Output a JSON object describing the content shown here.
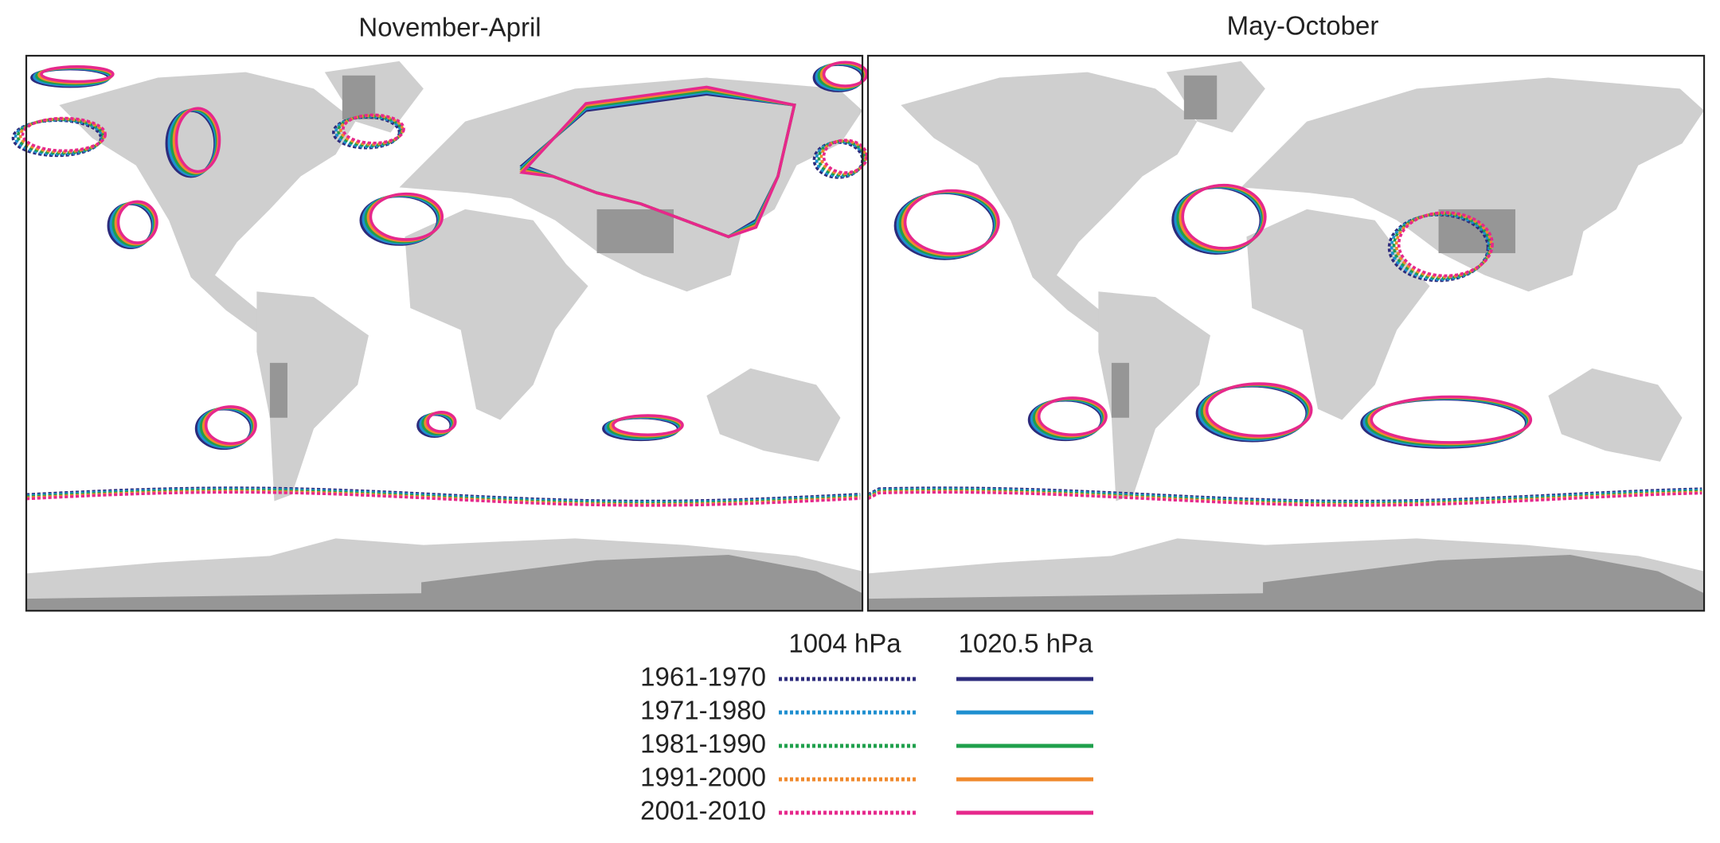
{
  "panels": [
    {
      "title": "November-April"
    },
    {
      "title": "May-October"
    }
  ],
  "legend": {
    "headers": [
      "1004 hPa",
      "1020.5 hPa"
    ],
    "entries": [
      {
        "label": "1961-1970",
        "color": "#2d2b7c"
      },
      {
        "label": "1971-1980",
        "color": "#1f8fd0"
      },
      {
        "label": "1981-1990",
        "color": "#1fa04c"
      },
      {
        "label": "1991-2000",
        "color": "#f0892c"
      },
      {
        "label": "2001-2010",
        "color": "#e6288c"
      }
    ]
  }
}
